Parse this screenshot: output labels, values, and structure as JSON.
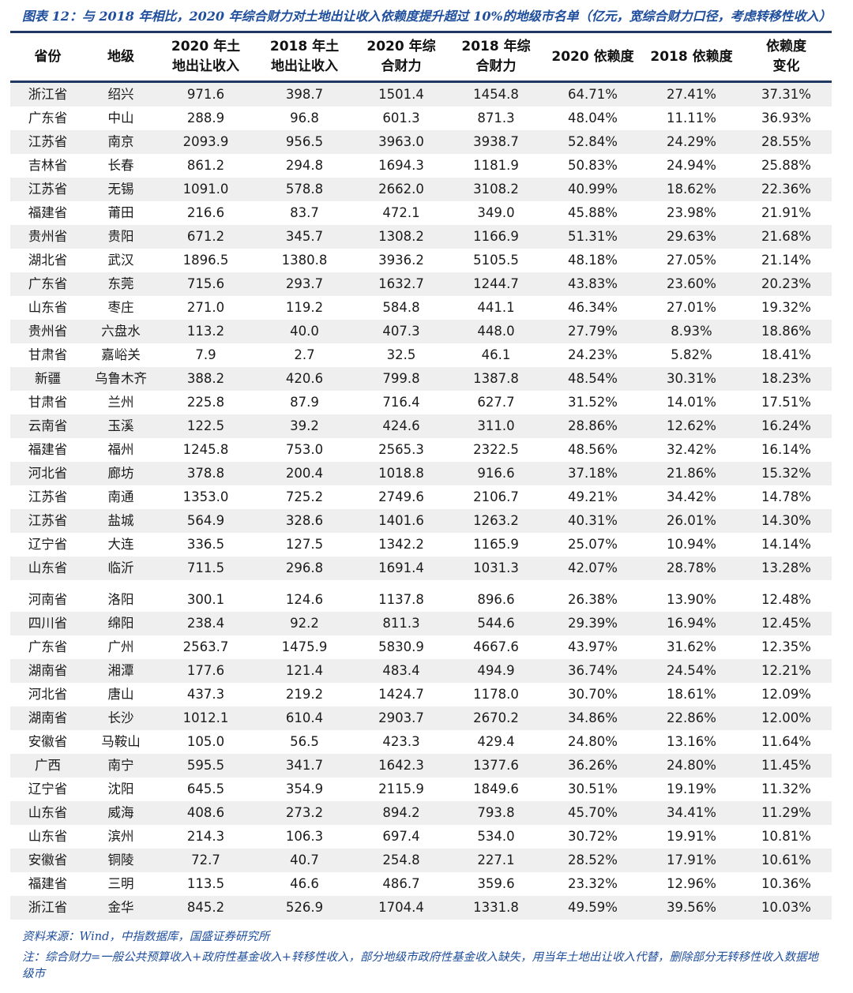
{
  "figure": {
    "title": "图表 12：与 2018 年相比，2020 年综合财力对土地出让收入依赖度提升超过 10%的地级市名单（亿元，宽综合财力口径，考虑转移性收入）",
    "source": "资料来源：Wind，中指数据库，国盛证券研究所",
    "note": "注：综合财力=一般公共预算收入+政府性基金收入+转移性收入，部分地级市政府性基金收入缺失，用当年土地出让收入代替，删除部分无转移性收入数据地级市"
  },
  "colors": {
    "accent_blue": "#1F4E9C",
    "rule_navy": "#1F3864",
    "stripe_gray": "#EFEFEF"
  },
  "table": {
    "columns": [
      "省份",
      "地级",
      "2020 年土地出让收入",
      "2018 年土地出让收入",
      "2020 年综合财力",
      "2018 年综合财力",
      "2020 依赖度",
      "2018 依赖度",
      "依赖度变化"
    ],
    "header_lines": [
      [
        "省份"
      ],
      [
        "地级"
      ],
      [
        "2020 年土",
        "地出让收入"
      ],
      [
        "2018 年土",
        "地出让收入"
      ],
      [
        "2020 年综",
        "合财力"
      ],
      [
        "2018 年综",
        "合财力"
      ],
      [
        "2020 依赖度"
      ],
      [
        "2018 依赖度"
      ],
      [
        "依赖度",
        "变化"
      ]
    ],
    "gap_after_row_index": 20,
    "rows": [
      [
        "浙江省",
        "绍兴",
        "971.6",
        "398.7",
        "1501.4",
        "1454.8",
        "64.71%",
        "27.41%",
        "37.31%"
      ],
      [
        "广东省",
        "中山",
        "288.9",
        "96.8",
        "601.3",
        "871.3",
        "48.04%",
        "11.11%",
        "36.93%"
      ],
      [
        "江苏省",
        "南京",
        "2093.9",
        "956.5",
        "3963.0",
        "3938.7",
        "52.84%",
        "24.29%",
        "28.55%"
      ],
      [
        "吉林省",
        "长春",
        "861.2",
        "294.8",
        "1694.3",
        "1181.9",
        "50.83%",
        "24.94%",
        "25.88%"
      ],
      [
        "江苏省",
        "无锡",
        "1091.0",
        "578.8",
        "2662.0",
        "3108.2",
        "40.99%",
        "18.62%",
        "22.36%"
      ],
      [
        "福建省",
        "莆田",
        "216.6",
        "83.7",
        "472.1",
        "349.0",
        "45.88%",
        "23.98%",
        "21.91%"
      ],
      [
        "贵州省",
        "贵阳",
        "671.2",
        "345.7",
        "1308.2",
        "1166.9",
        "51.31%",
        "29.63%",
        "21.68%"
      ],
      [
        "湖北省",
        "武汉",
        "1896.5",
        "1380.8",
        "3936.2",
        "5105.5",
        "48.18%",
        "27.05%",
        "21.14%"
      ],
      [
        "广东省",
        "东莞",
        "715.6",
        "293.7",
        "1632.7",
        "1244.7",
        "43.83%",
        "23.60%",
        "20.23%"
      ],
      [
        "山东省",
        "枣庄",
        "271.0",
        "119.2",
        "584.8",
        "441.1",
        "46.34%",
        "27.01%",
        "19.32%"
      ],
      [
        "贵州省",
        "六盘水",
        "113.2",
        "40.0",
        "407.3",
        "448.0",
        "27.79%",
        "8.93%",
        "18.86%"
      ],
      [
        "甘肃省",
        "嘉峪关",
        "7.9",
        "2.7",
        "32.5",
        "46.1",
        "24.23%",
        "5.82%",
        "18.41%"
      ],
      [
        "新疆",
        "乌鲁木齐",
        "388.2",
        "420.6",
        "799.8",
        "1387.8",
        "48.54%",
        "30.31%",
        "18.23%"
      ],
      [
        "甘肃省",
        "兰州",
        "225.8",
        "87.9",
        "716.4",
        "627.7",
        "31.52%",
        "14.01%",
        "17.51%"
      ],
      [
        "云南省",
        "玉溪",
        "122.5",
        "39.2",
        "424.6",
        "311.0",
        "28.86%",
        "12.62%",
        "16.24%"
      ],
      [
        "福建省",
        "福州",
        "1245.8",
        "753.0",
        "2565.3",
        "2322.5",
        "48.56%",
        "32.42%",
        "16.14%"
      ],
      [
        "河北省",
        "廊坊",
        "378.8",
        "200.4",
        "1018.8",
        "916.6",
        "37.18%",
        "21.86%",
        "15.32%"
      ],
      [
        "江苏省",
        "南通",
        "1353.0",
        "725.2",
        "2749.6",
        "2106.7",
        "49.21%",
        "34.42%",
        "14.78%"
      ],
      [
        "江苏省",
        "盐城",
        "564.9",
        "328.6",
        "1401.6",
        "1263.2",
        "40.31%",
        "26.01%",
        "14.30%"
      ],
      [
        "辽宁省",
        "大连",
        "336.5",
        "127.5",
        "1342.2",
        "1165.9",
        "25.07%",
        "10.94%",
        "14.14%"
      ],
      [
        "山东省",
        "临沂",
        "711.5",
        "296.8",
        "1691.4",
        "1031.3",
        "42.07%",
        "28.78%",
        "13.28%"
      ],
      [
        "河南省",
        "洛阳",
        "300.1",
        "124.6",
        "1137.8",
        "896.6",
        "26.38%",
        "13.90%",
        "12.48%"
      ],
      [
        "四川省",
        "绵阳",
        "238.4",
        "92.2",
        "811.3",
        "544.6",
        "29.39%",
        "16.94%",
        "12.45%"
      ],
      [
        "广东省",
        "广州",
        "2563.7",
        "1475.9",
        "5830.9",
        "4667.6",
        "43.97%",
        "31.62%",
        "12.35%"
      ],
      [
        "湖南省",
        "湘潭",
        "177.6",
        "121.4",
        "483.4",
        "494.9",
        "36.74%",
        "24.54%",
        "12.21%"
      ],
      [
        "河北省",
        "唐山",
        "437.3",
        "219.2",
        "1424.7",
        "1178.0",
        "30.70%",
        "18.61%",
        "12.09%"
      ],
      [
        "湖南省",
        "长沙",
        "1012.1",
        "610.4",
        "2903.7",
        "2670.2",
        "34.86%",
        "22.86%",
        "12.00%"
      ],
      [
        "安徽省",
        "马鞍山",
        "105.0",
        "56.5",
        "423.3",
        "429.4",
        "24.80%",
        "13.16%",
        "11.64%"
      ],
      [
        "广西",
        "南宁",
        "595.5",
        "341.7",
        "1642.3",
        "1377.6",
        "36.26%",
        "24.80%",
        "11.45%"
      ],
      [
        "辽宁省",
        "沈阳",
        "645.5",
        "354.9",
        "2115.9",
        "1849.6",
        "30.51%",
        "19.19%",
        "11.32%"
      ],
      [
        "山东省",
        "威海",
        "408.6",
        "273.2",
        "894.2",
        "793.8",
        "45.70%",
        "34.41%",
        "11.29%"
      ],
      [
        "山东省",
        "滨州",
        "214.3",
        "106.3",
        "697.4",
        "534.0",
        "30.72%",
        "19.91%",
        "10.81%"
      ],
      [
        "安徽省",
        "铜陵",
        "72.7",
        "40.7",
        "254.8",
        "227.1",
        "28.52%",
        "17.91%",
        "10.61%"
      ],
      [
        "福建省",
        "三明",
        "113.5",
        "46.6",
        "486.7",
        "359.6",
        "23.32%",
        "12.96%",
        "10.36%"
      ],
      [
        "浙江省",
        "金华",
        "845.2",
        "526.9",
        "1704.4",
        "1331.8",
        "49.59%",
        "39.56%",
        "10.03%"
      ]
    ]
  }
}
